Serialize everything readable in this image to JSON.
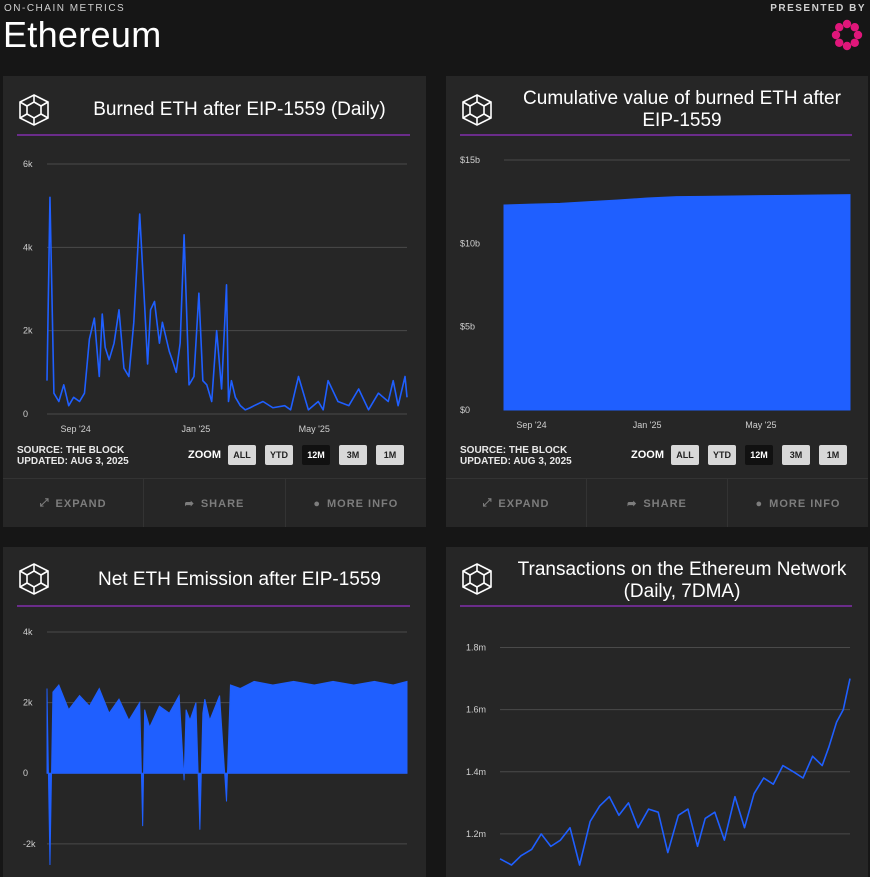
{
  "header": {
    "eyebrow": "ON-CHAIN METRICS",
    "title": "Ethereum",
    "presented_by": "PRESENTED BY",
    "logo_color": "#e0167a"
  },
  "colors": {
    "series": "#1f5fff",
    "grid": "#4a4a4a",
    "divider": "#6a2c8a"
  },
  "panels": [
    {
      "title": "Burned ETH after EIP-1559 (Daily)",
      "source_line1": "SOURCE: THE BLOCK",
      "source_line2": "UPDATED: AUG 3, 2025",
      "zoom_label": "ZOOM",
      "zoom_buttons": [
        "ALL",
        "YTD",
        "12M",
        "3M",
        "1M"
      ],
      "zoom_active": "12M",
      "footer": [
        "EXPAND",
        "SHARE",
        "MORE INFO"
      ]
    },
    {
      "title": "Cumulative value of burned ETH after EIP-1559",
      "source_line1": "SOURCE: THE BLOCK",
      "source_line2": "UPDATED: AUG 3, 2025",
      "zoom_label": "ZOOM",
      "zoom_buttons": [
        "ALL",
        "YTD",
        "12M",
        "3M",
        "1M"
      ],
      "zoom_active": "12M",
      "footer": [
        "EXPAND",
        "SHARE",
        "MORE INFO"
      ]
    },
    {
      "title": "Net ETH Emission after EIP-1559"
    },
    {
      "title": "Transactions on the Ethereum Network (Daily, 7DMA)"
    }
  ],
  "chart_data": [
    {
      "type": "line",
      "y_ticks": [
        "6k",
        "4k",
        "2k",
        "0"
      ],
      "y_tick_values": [
        6000,
        4000,
        2000,
        0
      ],
      "ylim": [
        0,
        6000
      ],
      "x_ticks": [
        "Sep '24",
        "Jan '25",
        "May '25"
      ],
      "x_tick_positions": [
        "2024-09-01",
        "2025-01-01",
        "2025-05-01"
      ],
      "xlim": [
        "2024-08-03",
        "2025-08-03"
      ],
      "grid": true,
      "series": [
        {
          "dates": [
            "2024-08-03",
            "2024-08-06",
            "2024-08-10",
            "2024-08-15",
            "2024-08-20",
            "2024-08-25",
            "2024-08-30",
            "2024-09-05",
            "2024-09-10",
            "2024-09-15",
            "2024-09-20",
            "2024-09-25",
            "2024-09-28",
            "2024-10-01",
            "2024-10-05",
            "2024-10-10",
            "2024-10-15",
            "2024-10-20",
            "2024-10-25",
            "2024-10-30",
            "2024-11-05",
            "2024-11-10",
            "2024-11-13",
            "2024-11-16",
            "2024-11-20",
            "2024-11-25",
            "2024-11-28",
            "2024-12-02",
            "2024-12-05",
            "2024-12-08",
            "2024-12-12",
            "2024-12-16",
            "2024-12-20",
            "2024-12-25",
            "2024-12-30",
            "2025-01-04",
            "2025-01-08",
            "2025-01-12",
            "2025-01-17",
            "2025-01-22",
            "2025-01-27",
            "2025-02-01",
            "2025-02-03",
            "2025-02-06",
            "2025-02-10",
            "2025-02-15",
            "2025-02-20",
            "2025-02-25",
            "2025-03-01",
            "2025-03-10",
            "2025-03-20",
            "2025-04-01",
            "2025-04-07",
            "2025-04-15",
            "2025-04-25",
            "2025-05-05",
            "2025-05-10",
            "2025-05-15",
            "2025-05-25",
            "2025-06-05",
            "2025-06-15",
            "2025-06-25",
            "2025-07-05",
            "2025-07-15",
            "2025-07-20",
            "2025-07-25",
            "2025-08-01",
            "2025-08-03"
          ],
          "values": [
            800,
            5200,
            500,
            300,
            700,
            200,
            400,
            300,
            500,
            1800,
            2300,
            900,
            2400,
            1600,
            1300,
            1700,
            2500,
            1100,
            900,
            2200,
            4800,
            2600,
            1200,
            2500,
            2700,
            1700,
            2200,
            1800,
            1500,
            1300,
            1000,
            1700,
            4300,
            700,
            900,
            2900,
            800,
            700,
            300,
            2000,
            600,
            3100,
            300,
            800,
            400,
            200,
            100,
            150,
            200,
            300,
            150,
            200,
            100,
            900,
            100,
            300,
            100,
            800,
            300,
            200,
            600,
            100,
            500,
            300,
            800,
            200,
            900,
            400
          ]
        }
      ]
    },
    {
      "type": "area",
      "y_ticks": [
        "$15b",
        "$10b",
        "$5b",
        "$0"
      ],
      "y_tick_values": [
        15,
        10,
        5,
        0
      ],
      "ylim": [
        0,
        15
      ],
      "y_unit": "billion USD",
      "x_ticks": [
        "Sep '24",
        "Jan '25",
        "May '25"
      ],
      "x_tick_positions": [
        "2024-09-01",
        "2025-01-01",
        "2025-05-01"
      ],
      "xlim": [
        "2024-08-03",
        "2025-08-03"
      ],
      "grid": true,
      "series": [
        {
          "dates": [
            "2024-08-03",
            "2024-09-01",
            "2024-10-01",
            "2024-11-01",
            "2024-12-01",
            "2025-01-01",
            "2025-02-01",
            "2025-03-01",
            "2025-04-01",
            "2025-05-01",
            "2025-06-01",
            "2025-07-01",
            "2025-08-03"
          ],
          "values": [
            12.3,
            12.35,
            12.4,
            12.5,
            12.6,
            12.72,
            12.8,
            12.82,
            12.84,
            12.86,
            12.88,
            12.9,
            12.92
          ]
        }
      ]
    },
    {
      "type": "area",
      "y_ticks": [
        "4k",
        "2k",
        "0",
        "-2k"
      ],
      "y_tick_values": [
        4000,
        2000,
        0,
        -2000
      ],
      "ylim": [
        -2600,
        4000
      ],
      "x_ticks": [],
      "xlim": [
        "2024-08-03",
        "2025-08-03"
      ],
      "grid": true,
      "series": [
        {
          "dates": [
            "2024-08-03",
            "2024-08-06",
            "2024-08-09",
            "2024-08-15",
            "2024-08-25",
            "2024-09-05",
            "2024-09-15",
            "2024-09-25",
            "2024-10-05",
            "2024-10-15",
            "2024-10-25",
            "2024-11-05",
            "2024-11-08",
            "2024-11-10",
            "2024-11-15",
            "2024-11-25",
            "2024-12-05",
            "2024-12-15",
            "2024-12-20",
            "2024-12-22",
            "2024-12-26",
            "2025-01-01",
            "2025-01-05",
            "2025-01-08",
            "2025-01-10",
            "2025-01-15",
            "2025-01-25",
            "2025-02-01",
            "2025-02-05",
            "2025-02-15",
            "2025-03-01",
            "2025-03-20",
            "2025-04-10",
            "2025-05-01",
            "2025-05-20",
            "2025-06-10",
            "2025-07-01",
            "2025-07-20",
            "2025-08-03"
          ],
          "values": [
            2400,
            -2600,
            2300,
            2500,
            1800,
            2200,
            1900,
            2400,
            1700,
            2100,
            1500,
            2000,
            -1500,
            1800,
            1300,
            1900,
            1700,
            2200,
            -200,
            1800,
            1500,
            2000,
            -1600,
            1700,
            2100,
            1500,
            2200,
            -800,
            2500,
            2400,
            2600,
            2500,
            2600,
            2500,
            2600,
            2500,
            2600,
            2500,
            2600
          ]
        }
      ]
    },
    {
      "type": "line",
      "y_ticks": [
        "1.8m",
        "1.6m",
        "1.4m",
        "1.2m"
      ],
      "y_tick_values": [
        1800000,
        1600000,
        1400000,
        1200000
      ],
      "ylim": [
        1100000,
        1850000
      ],
      "x_ticks": [],
      "xlim": [
        "2024-08-03",
        "2025-08-03"
      ],
      "grid": true,
      "series": [
        {
          "dates": [
            "2024-08-03",
            "2024-08-15",
            "2024-08-25",
            "2024-09-05",
            "2024-09-15",
            "2024-09-25",
            "2024-10-05",
            "2024-10-15",
            "2024-10-25",
            "2024-11-05",
            "2024-11-15",
            "2024-11-25",
            "2024-12-05",
            "2024-12-15",
            "2024-12-25",
            "2025-01-05",
            "2025-01-15",
            "2025-01-25",
            "2025-02-05",
            "2025-02-15",
            "2025-02-25",
            "2025-03-05",
            "2025-03-15",
            "2025-03-25",
            "2025-04-05",
            "2025-04-15",
            "2025-04-25",
            "2025-05-05",
            "2025-05-15",
            "2025-05-25",
            "2025-06-05",
            "2025-06-15",
            "2025-06-25",
            "2025-07-05",
            "2025-07-12",
            "2025-07-20",
            "2025-07-27",
            "2025-08-03"
          ],
          "values": [
            1120000,
            1100000,
            1130000,
            1150000,
            1200000,
            1160000,
            1180000,
            1220000,
            1100000,
            1240000,
            1290000,
            1320000,
            1260000,
            1300000,
            1220000,
            1280000,
            1270000,
            1140000,
            1260000,
            1280000,
            1160000,
            1250000,
            1270000,
            1180000,
            1320000,
            1220000,
            1330000,
            1380000,
            1360000,
            1420000,
            1400000,
            1380000,
            1450000,
            1420000,
            1480000,
            1560000,
            1600000,
            1700000
          ]
        }
      ]
    }
  ]
}
